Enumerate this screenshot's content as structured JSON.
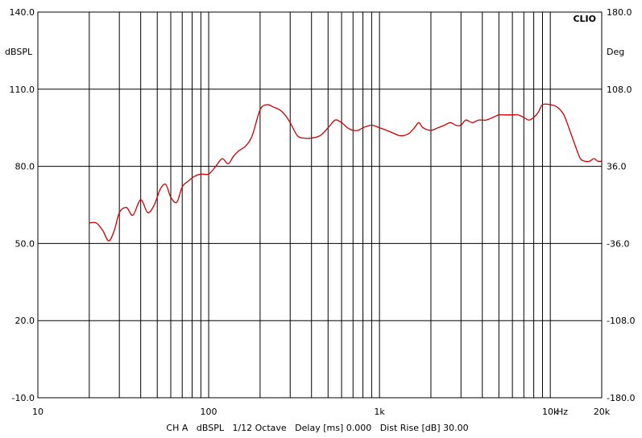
{
  "chart_data": {
    "type": "line",
    "brand": "CLIO",
    "x_scale": "log",
    "xlim": [
      10,
      20000
    ],
    "x_ticks": [
      {
        "value": 10,
        "label": "10"
      },
      {
        "value": 100,
        "label": "100"
      },
      {
        "value": 1000,
        "label": "1k"
      },
      {
        "value": 10000,
        "label": "10k"
      },
      {
        "value": 20000,
        "label": "20k"
      }
    ],
    "x_unit": "Hz",
    "ylim_left": [
      -10,
      140
    ],
    "left_unit": "dBSPL",
    "left_ticks": [
      "140.0",
      "110.0",
      "80.0",
      "50.0",
      "20.0",
      "-10.0"
    ],
    "left_tick_values": [
      140,
      110,
      80,
      50,
      20,
      -10
    ],
    "right_unit": "Deg",
    "right_ticks": [
      "180.0",
      "108.0",
      "36.0",
      "-36.0",
      "-108.0",
      "-180.0"
    ],
    "grid": true,
    "footer": "CH A   dBSPL   1/12 Octave   Delay [ms] 0.000   Dist Rise [dB] 30.00",
    "series": [
      {
        "color": "#cc0000",
        "x": [
          20,
          22,
          24,
          26,
          28,
          30,
          33,
          36,
          40,
          44,
          48,
          52,
          56,
          60,
          65,
          70,
          75,
          82,
          90,
          100,
          110,
          120,
          130,
          140,
          150,
          165,
          180,
          200,
          220,
          240,
          260,
          280,
          300,
          330,
          360,
          400,
          450,
          500,
          550,
          600,
          650,
          700,
          750,
          800,
          900,
          1000,
          1100,
          1200,
          1300,
          1400,
          1500,
          1600,
          1700,
          1800,
          2000,
          2200,
          2400,
          2600,
          2800,
          3000,
          3200,
          3500,
          3800,
          4200,
          4600,
          5000,
          5500,
          6000,
          6500,
          7000,
          7500,
          8000,
          8500,
          9000,
          10000,
          11000,
          12000,
          13000,
          14000,
          15000,
          16000,
          17000,
          18000,
          19000,
          20000
        ],
        "y": [
          58,
          58,
          55,
          51,
          55,
          62,
          64,
          61,
          67,
          62,
          65,
          71,
          73,
          68,
          66,
          72,
          74,
          76,
          77,
          77,
          80,
          83,
          81,
          84,
          86,
          88,
          92,
          102,
          104,
          103,
          102,
          100,
          97,
          92,
          91,
          91,
          92,
          95,
          98,
          97,
          95,
          94,
          94,
          95,
          96,
          95,
          94,
          93,
          92,
          92,
          93,
          95,
          97,
          95,
          94,
          95,
          96,
          97,
          96,
          96,
          98,
          97,
          98,
          98,
          99,
          100,
          100,
          100,
          100,
          99,
          98,
          99,
          101,
          104,
          104,
          103,
          100,
          94,
          88,
          83,
          82,
          82,
          83,
          82,
          82
        ]
      }
    ]
  }
}
